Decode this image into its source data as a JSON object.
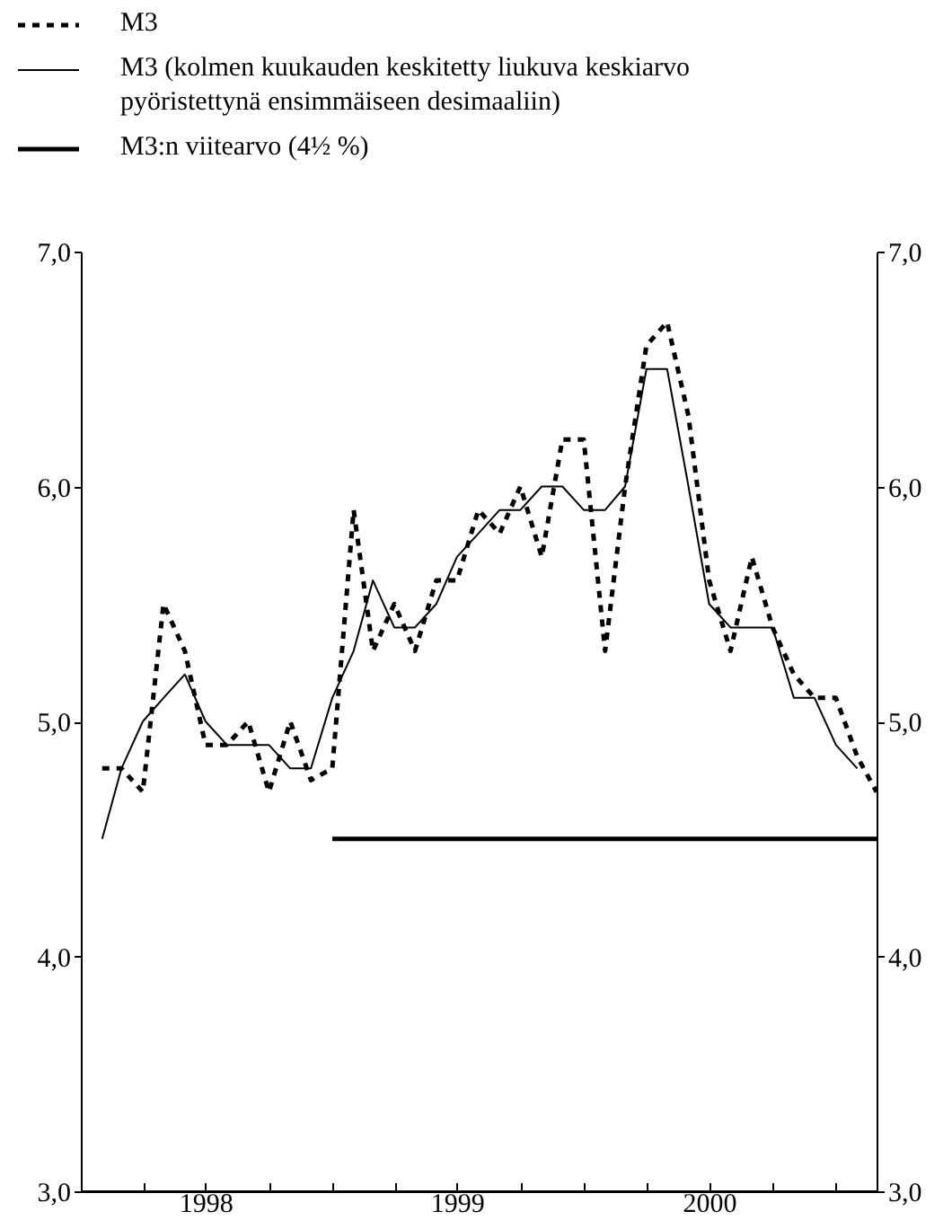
{
  "chart_data": {
    "type": "line",
    "legend": "top left",
    "xlim": [
      "1998-01",
      "2001-03"
    ],
    "xticks": [
      {
        "value": "1998-04",
        "label": null
      },
      {
        "value": "1998-07",
        "label": "1998"
      },
      {
        "value": "1998-10",
        "label": null
      },
      {
        "value": "1999-01",
        "label": null
      },
      {
        "value": "1999-04",
        "label": null
      },
      {
        "value": "1999-07",
        "label": "1999"
      },
      {
        "value": "1999-10",
        "label": null
      },
      {
        "value": "2000-01",
        "label": null
      },
      {
        "value": "2000-04",
        "label": null
      },
      {
        "value": "2000-07",
        "label": "2000"
      },
      {
        "value": "2000-10",
        "label": null
      },
      {
        "value": "2001-01",
        "label": null
      }
    ],
    "ylim": [
      3,
      7
    ],
    "yticks": [
      {
        "value": 3,
        "label": "3,0"
      },
      {
        "value": 4,
        "label": "4,0"
      },
      {
        "value": 5,
        "label": "5,0"
      },
      {
        "value": 6,
        "label": "6,0"
      },
      {
        "value": 7,
        "label": "7,0"
      }
    ],
    "y2lim": [
      3,
      7
    ],
    "y2ticks": [
      {
        "value": 3,
        "label": "3,0"
      },
      {
        "value": 4,
        "label": "4,0"
      },
      {
        "value": 5,
        "label": "5,0"
      },
      {
        "value": 6,
        "label": "6,0"
      },
      {
        "value": 7,
        "label": "7,0"
      }
    ],
    "series": [
      {
        "name": "M3",
        "color": "#000000",
        "line_style": "dashed",
        "x": [
          "1998-02",
          "1998-03",
          "1998-04",
          "1998-05",
          "1998-06",
          "1998-07",
          "1998-08",
          "1998-09",
          "1998-10",
          "1998-11",
          "1998-12",
          "1999-01",
          "1999-02",
          "1999-03",
          "1999-04",
          "1999-05",
          "1999-06",
          "1999-07",
          "1999-08",
          "1999-09",
          "1999-10",
          "1999-11",
          "1999-12",
          "2000-01",
          "2000-02",
          "2000-03",
          "2000-04",
          "2000-05",
          "2000-06",
          "2000-07",
          "2000-08",
          "2000-09",
          "2000-10",
          "2000-11",
          "2000-12",
          "2001-01",
          "2001-02",
          "2001-03"
        ],
        "values": [
          4.8,
          4.8,
          4.7,
          5.5,
          5.3,
          4.9,
          4.9,
          5.0,
          4.7,
          5.0,
          4.75,
          4.8,
          5.9,
          5.3,
          5.5,
          5.3,
          5.6,
          5.6,
          5.9,
          5.8,
          6.0,
          5.7,
          6.2,
          6.2,
          5.3,
          6.0,
          6.6,
          6.7,
          6.3,
          5.6,
          5.3,
          5.7,
          5.4,
          5.2,
          5.1,
          5.1,
          4.85,
          4.7
        ]
      },
      {
        "name": "M3 (kolmen kuukauden keskitetty liukuva keskiarvo pyöristettynä ensimmäiseen desimaaliin)",
        "color": "#000000",
        "line_style": "solid",
        "x": [
          "1998-02",
          "1998-03",
          "1998-04",
          "1998-05",
          "1998-06",
          "1998-07",
          "1998-08",
          "1998-09",
          "1998-10",
          "1998-11",
          "1998-12",
          "1999-01",
          "1999-02",
          "1999-03",
          "1999-04",
          "1999-05",
          "1999-06",
          "1999-07",
          "1999-08",
          "1999-09",
          "1999-10",
          "1999-11",
          "1999-12",
          "2000-01",
          "2000-02",
          "2000-03",
          "2000-04",
          "2000-05",
          "2000-06",
          "2000-07",
          "2000-08",
          "2000-09",
          "2000-10",
          "2000-11",
          "2000-12",
          "2001-01",
          "2001-02"
        ],
        "values": [
          4.5,
          4.8,
          5.0,
          5.1,
          5.2,
          5.0,
          4.9,
          4.9,
          4.9,
          4.8,
          4.8,
          5.1,
          5.3,
          5.6,
          5.4,
          5.4,
          5.5,
          5.7,
          5.8,
          5.9,
          5.9,
          6.0,
          6.0,
          5.9,
          5.9,
          6.0,
          6.5,
          6.5,
          6.0,
          5.5,
          5.4,
          5.4,
          5.4,
          5.1,
          5.1,
          4.9,
          4.8
        ]
      },
      {
        "name": "M3:n viitearvo (4½ %)",
        "color": "#000000",
        "line_style": "solid",
        "x": [
          "1999-01",
          "2001-03"
        ],
        "values": [
          4.5,
          4.5
        ]
      }
    ]
  }
}
